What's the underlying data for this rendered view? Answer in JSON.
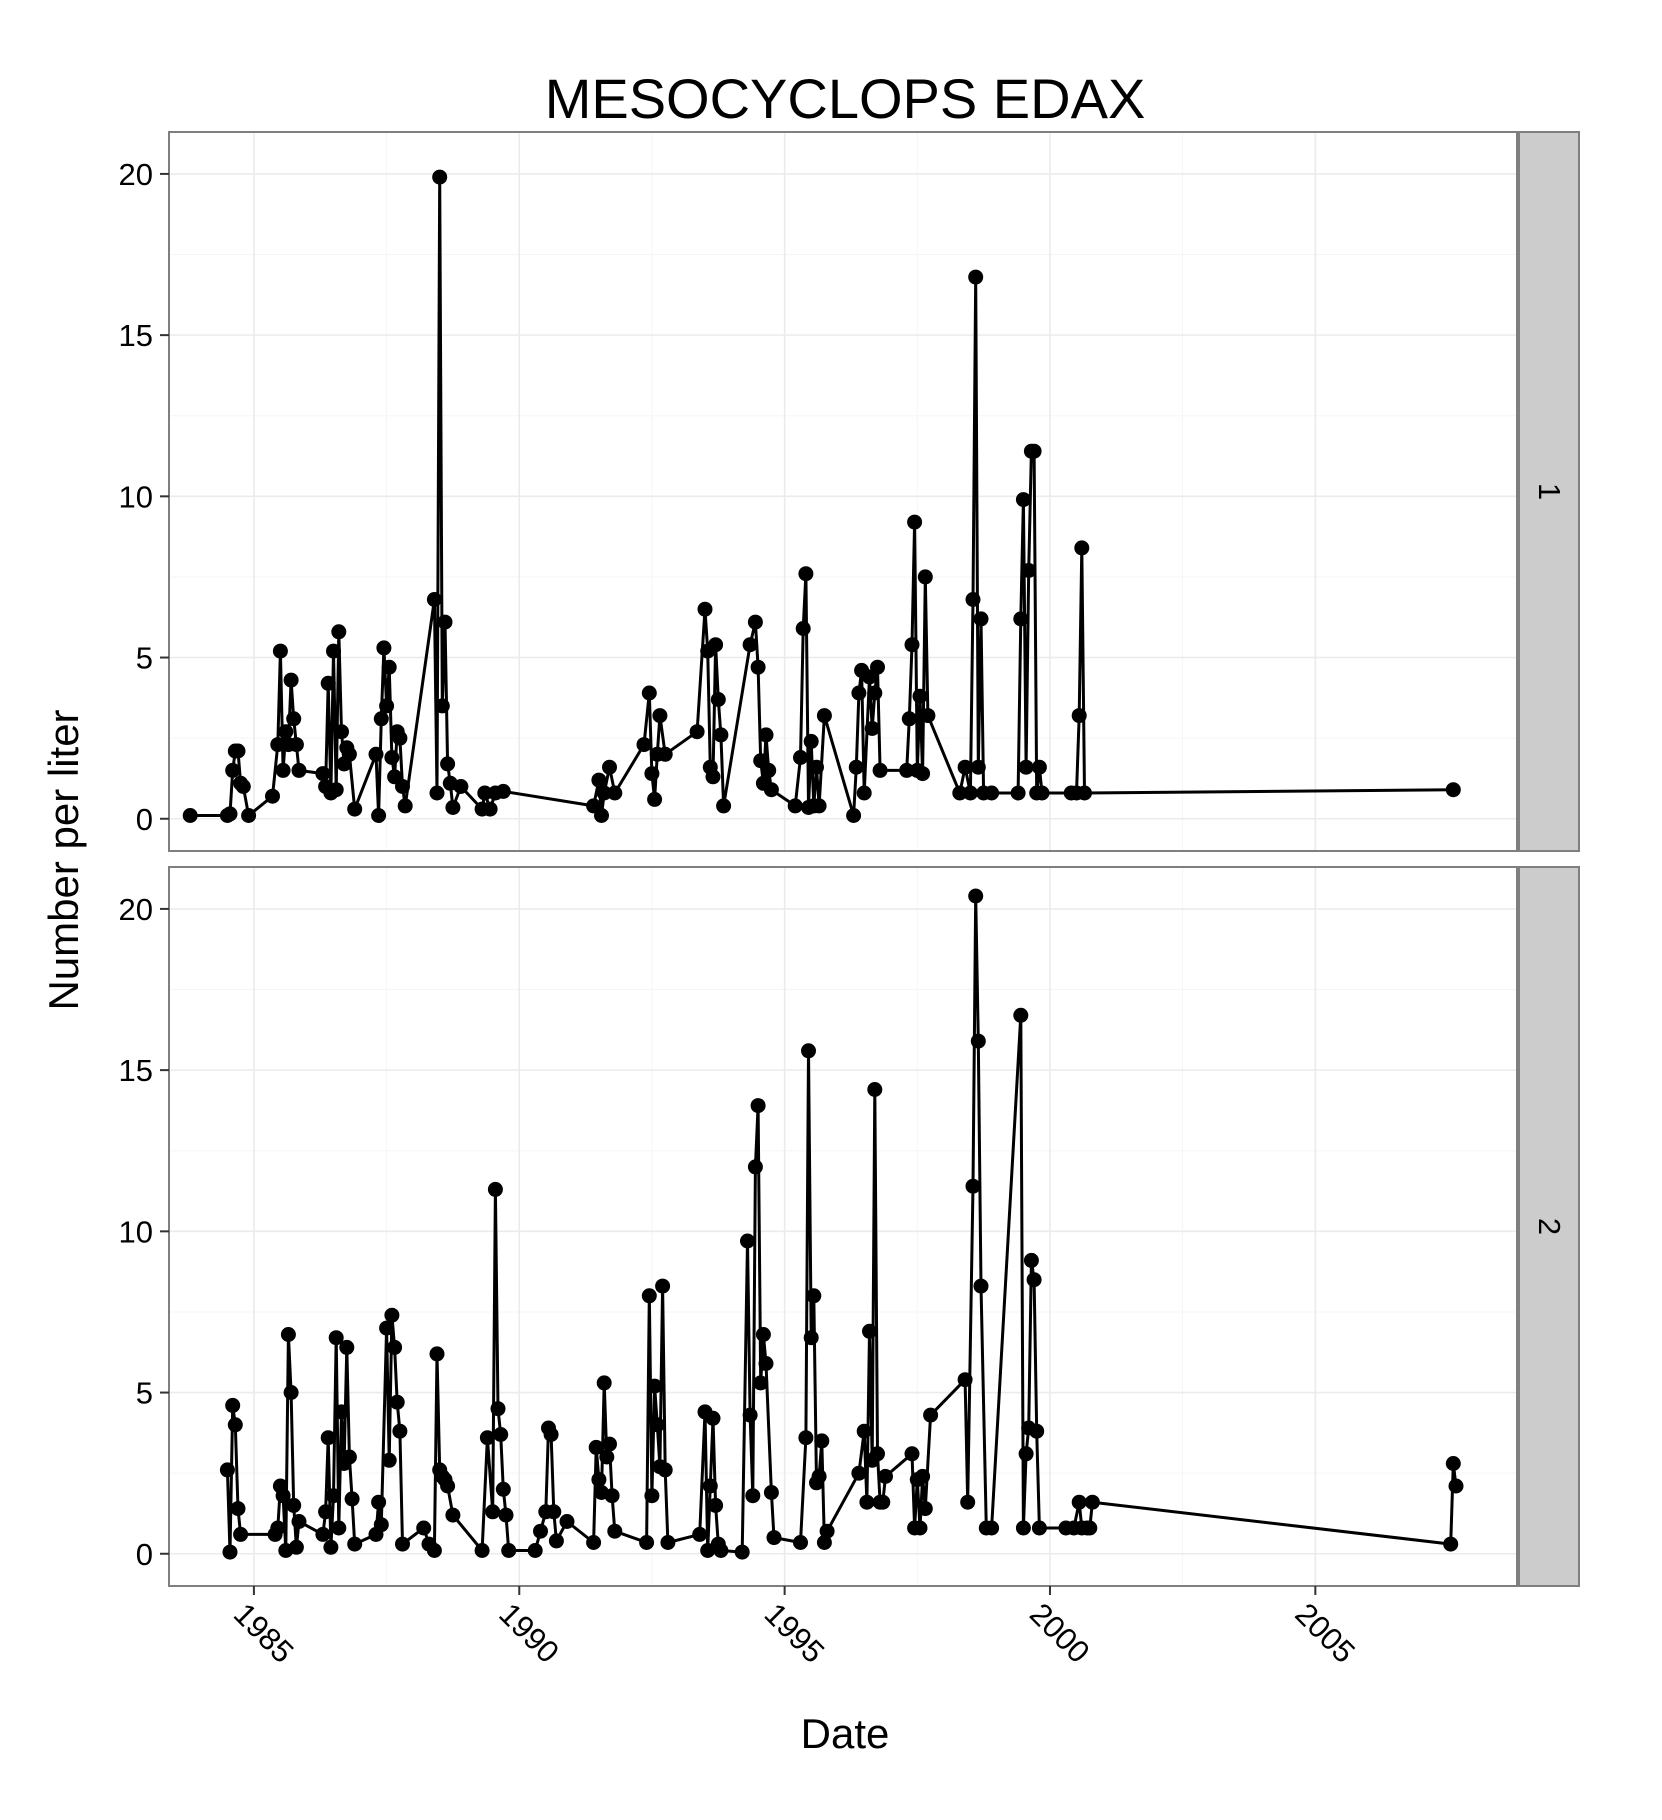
{
  "chart_data": {
    "type": "line",
    "title": "MESOCYCLOPS EDAX",
    "xlabel": "Date",
    "ylabel": "Number per liter",
    "xlim": [
      1983.4,
      2008.8
    ],
    "ylim": [
      -1,
      21.3
    ],
    "x_ticks": [
      1985,
      1990,
      1995,
      2000,
      2005
    ],
    "x_tick_labels": [
      "1985",
      "1990",
      "1995",
      "2000",
      "2005"
    ],
    "y_ticks": [
      0,
      5,
      10,
      15,
      20
    ],
    "y_tick_labels": [
      "0",
      "5",
      "10",
      "15",
      "20"
    ],
    "grid": true,
    "facet": "rows",
    "panels": [
      {
        "label": "1",
        "points": [
          [
            1983.8,
            0.1
          ],
          [
            1984.5,
            0.1
          ],
          [
            1984.55,
            0.15
          ],
          [
            1984.6,
            1.5
          ],
          [
            1984.65,
            2.1
          ],
          [
            1984.7,
            2.1
          ],
          [
            1984.75,
            1.1
          ],
          [
            1984.8,
            1.0
          ],
          [
            1984.9,
            0.1
          ],
          [
            1985.35,
            0.7
          ],
          [
            1985.45,
            2.3
          ],
          [
            1985.5,
            5.2
          ],
          [
            1985.55,
            1.5
          ],
          [
            1985.6,
            2.7
          ],
          [
            1985.65,
            2.3
          ],
          [
            1985.7,
            4.3
          ],
          [
            1985.75,
            3.1
          ],
          [
            1985.8,
            2.3
          ],
          [
            1985.85,
            1.5
          ],
          [
            1986.3,
            1.4
          ],
          [
            1986.35,
            1.0
          ],
          [
            1986.4,
            4.2
          ],
          [
            1986.45,
            0.8
          ],
          [
            1986.5,
            5.2
          ],
          [
            1986.55,
            0.9
          ],
          [
            1986.6,
            5.8
          ],
          [
            1986.65,
            2.7
          ],
          [
            1986.7,
            1.7
          ],
          [
            1986.75,
            2.2
          ],
          [
            1986.8,
            2.0
          ],
          [
            1986.9,
            0.3
          ],
          [
            1987.3,
            2.0
          ],
          [
            1987.35,
            0.1
          ],
          [
            1987.4,
            3.1
          ],
          [
            1987.45,
            5.3
          ],
          [
            1987.5,
            3.5
          ],
          [
            1987.55,
            4.7
          ],
          [
            1987.6,
            1.9
          ],
          [
            1987.65,
            1.3
          ],
          [
            1987.7,
            2.7
          ],
          [
            1987.75,
            2.5
          ],
          [
            1987.8,
            1.0
          ],
          [
            1987.85,
            0.4
          ],
          [
            1988.4,
            6.8
          ],
          [
            1988.45,
            0.8
          ],
          [
            1988.5,
            19.9
          ],
          [
            1988.55,
            3.5
          ],
          [
            1988.6,
            6.1
          ],
          [
            1988.65,
            1.7
          ],
          [
            1988.7,
            1.1
          ],
          [
            1988.75,
            0.35
          ],
          [
            1988.9,
            1.0
          ],
          [
            1989.3,
            0.3
          ],
          [
            1989.35,
            0.8
          ],
          [
            1989.45,
            0.3
          ],
          [
            1989.55,
            0.8
          ],
          [
            1989.7,
            0.85
          ],
          [
            1991.4,
            0.4
          ],
          [
            1991.5,
            1.2
          ],
          [
            1991.55,
            0.1
          ],
          [
            1991.6,
            0.8
          ],
          [
            1991.7,
            1.6
          ],
          [
            1991.8,
            0.8
          ],
          [
            1992.35,
            2.3
          ],
          [
            1992.45,
            3.9
          ],
          [
            1992.5,
            1.4
          ],
          [
            1992.55,
            0.6
          ],
          [
            1992.6,
            2.0
          ],
          [
            1992.65,
            3.2
          ],
          [
            1992.75,
            2.0
          ],
          [
            1993.35,
            2.7
          ],
          [
            1993.5,
            6.5
          ],
          [
            1993.55,
            5.2
          ],
          [
            1993.6,
            1.6
          ],
          [
            1993.65,
            1.3
          ],
          [
            1993.7,
            5.4
          ],
          [
            1993.75,
            3.7
          ],
          [
            1993.8,
            2.6
          ],
          [
            1993.85,
            0.4
          ],
          [
            1994.35,
            5.4
          ],
          [
            1994.45,
            6.1
          ],
          [
            1994.5,
            4.7
          ],
          [
            1994.55,
            1.8
          ],
          [
            1994.6,
            1.1
          ],
          [
            1994.65,
            2.6
          ],
          [
            1994.7,
            1.5
          ],
          [
            1994.75,
            0.9
          ],
          [
            1995.2,
            0.4
          ],
          [
            1995.3,
            1.9
          ],
          [
            1995.35,
            5.9
          ],
          [
            1995.4,
            7.6
          ],
          [
            1995.45,
            0.35
          ],
          [
            1995.5,
            2.4
          ],
          [
            1995.55,
            0.4
          ],
          [
            1995.6,
            1.6
          ],
          [
            1995.65,
            0.4
          ],
          [
            1995.75,
            3.2
          ],
          [
            1996.3,
            0.1
          ],
          [
            1996.35,
            1.6
          ],
          [
            1996.4,
            3.9
          ],
          [
            1996.45,
            4.6
          ],
          [
            1996.5,
            0.8
          ],
          [
            1996.6,
            4.4
          ],
          [
            1996.65,
            2.8
          ],
          [
            1996.7,
            3.9
          ],
          [
            1996.75,
            4.7
          ],
          [
            1996.8,
            1.5
          ],
          [
            1997.3,
            1.5
          ],
          [
            1997.35,
            3.1
          ],
          [
            1997.4,
            5.4
          ],
          [
            1997.45,
            9.2
          ],
          [
            1997.5,
            1.5
          ],
          [
            1997.55,
            3.8
          ],
          [
            1997.6,
            1.4
          ],
          [
            1997.65,
            7.5
          ],
          [
            1997.7,
            3.2
          ],
          [
            1998.3,
            0.8
          ],
          [
            1998.4,
            1.6
          ],
          [
            1998.5,
            0.8
          ],
          [
            1998.55,
            6.8
          ],
          [
            1998.6,
            16.8
          ],
          [
            1998.65,
            1.6
          ],
          [
            1998.7,
            6.2
          ],
          [
            1998.75,
            0.8
          ],
          [
            1998.9,
            0.8
          ],
          [
            1999.4,
            0.8
          ],
          [
            1999.45,
            6.2
          ],
          [
            1999.5,
            9.9
          ],
          [
            1999.55,
            1.6
          ],
          [
            1999.6,
            7.7
          ],
          [
            1999.65,
            11.4
          ],
          [
            1999.7,
            11.4
          ],
          [
            1999.75,
            0.8
          ],
          [
            1999.8,
            1.6
          ],
          [
            1999.85,
            0.8
          ],
          [
            2000.4,
            0.8
          ],
          [
            2000.5,
            0.8
          ],
          [
            2000.55,
            3.2
          ],
          [
            2000.6,
            8.4
          ],
          [
            2000.65,
            0.8
          ],
          [
            2007.6,
            0.9
          ]
        ]
      },
      {
        "label": "2",
        "points": [
          [
            1984.5,
            2.6
          ],
          [
            1984.55,
            0.05
          ],
          [
            1984.6,
            4.6
          ],
          [
            1984.65,
            4.0
          ],
          [
            1984.7,
            1.4
          ],
          [
            1984.75,
            0.6
          ],
          [
            1985.4,
            0.6
          ],
          [
            1985.45,
            0.8
          ],
          [
            1985.5,
            2.1
          ],
          [
            1985.55,
            1.8
          ],
          [
            1985.6,
            0.1
          ],
          [
            1985.65,
            6.8
          ],
          [
            1985.7,
            5.0
          ],
          [
            1985.75,
            1.5
          ],
          [
            1985.8,
            0.2
          ],
          [
            1985.85,
            1.0
          ],
          [
            1986.3,
            0.6
          ],
          [
            1986.35,
            1.3
          ],
          [
            1986.4,
            3.6
          ],
          [
            1986.45,
            0.2
          ],
          [
            1986.5,
            1.8
          ],
          [
            1986.55,
            6.7
          ],
          [
            1986.6,
            0.8
          ],
          [
            1986.65,
            4.4
          ],
          [
            1986.7,
            2.8
          ],
          [
            1986.75,
            6.4
          ],
          [
            1986.8,
            3.0
          ],
          [
            1986.85,
            1.7
          ],
          [
            1986.9,
            0.3
          ],
          [
            1987.3,
            0.6
          ],
          [
            1987.35,
            1.6
          ],
          [
            1987.4,
            0.9
          ],
          [
            1987.5,
            7.0
          ],
          [
            1987.55,
            2.9
          ],
          [
            1987.6,
            7.4
          ],
          [
            1987.65,
            6.4
          ],
          [
            1987.7,
            4.7
          ],
          [
            1987.75,
            3.8
          ],
          [
            1987.8,
            0.3
          ],
          [
            1988.2,
            0.8
          ],
          [
            1988.3,
            0.3
          ],
          [
            1988.4,
            0.1
          ],
          [
            1988.45,
            6.2
          ],
          [
            1988.5,
            2.6
          ],
          [
            1988.55,
            2.4
          ],
          [
            1988.6,
            2.3
          ],
          [
            1988.65,
            2.1
          ],
          [
            1988.75,
            1.2
          ],
          [
            1989.3,
            0.1
          ],
          [
            1989.4,
            3.6
          ],
          [
            1989.5,
            1.3
          ],
          [
            1989.55,
            11.3
          ],
          [
            1989.6,
            4.5
          ],
          [
            1989.65,
            3.7
          ],
          [
            1989.7,
            2.0
          ],
          [
            1989.75,
            1.2
          ],
          [
            1989.8,
            0.1
          ],
          [
            1990.3,
            0.1
          ],
          [
            1990.4,
            0.7
          ],
          [
            1990.5,
            1.3
          ],
          [
            1990.55,
            3.9
          ],
          [
            1990.6,
            3.7
          ],
          [
            1990.65,
            1.3
          ],
          [
            1990.7,
            0.4
          ],
          [
            1990.9,
            1.0
          ],
          [
            1991.4,
            0.35
          ],
          [
            1991.45,
            3.3
          ],
          [
            1991.5,
            2.3
          ],
          [
            1991.55,
            1.9
          ],
          [
            1991.6,
            5.3
          ],
          [
            1991.65,
            3.0
          ],
          [
            1991.7,
            3.4
          ],
          [
            1991.75,
            1.8
          ],
          [
            1991.8,
            0.7
          ],
          [
            1992.4,
            0.35
          ],
          [
            1992.45,
            8.0
          ],
          [
            1992.5,
            1.8
          ],
          [
            1992.55,
            5.2
          ],
          [
            1992.6,
            4.0
          ],
          [
            1992.65,
            2.7
          ],
          [
            1992.7,
            8.3
          ],
          [
            1992.75,
            2.6
          ],
          [
            1992.8,
            0.35
          ],
          [
            1993.4,
            0.6
          ],
          [
            1993.5,
            4.4
          ],
          [
            1993.55,
            0.1
          ],
          [
            1993.6,
            2.1
          ],
          [
            1993.65,
            4.2
          ],
          [
            1993.7,
            1.5
          ],
          [
            1993.75,
            0.3
          ],
          [
            1993.8,
            0.1
          ],
          [
            1994.2,
            0.05
          ],
          [
            1994.3,
            9.7
          ],
          [
            1994.35,
            4.3
          ],
          [
            1994.4,
            1.8
          ],
          [
            1994.45,
            12.0
          ],
          [
            1994.5,
            13.9
          ],
          [
            1994.55,
            5.3
          ],
          [
            1994.6,
            6.8
          ],
          [
            1994.65,
            5.9
          ],
          [
            1994.75,
            1.9
          ],
          [
            1994.8,
            0.5
          ],
          [
            1995.3,
            0.35
          ],
          [
            1995.4,
            3.6
          ],
          [
            1995.45,
            15.6
          ],
          [
            1995.5,
            6.7
          ],
          [
            1995.55,
            8.0
          ],
          [
            1995.6,
            2.2
          ],
          [
            1995.65,
            2.4
          ],
          [
            1995.7,
            3.5
          ],
          [
            1995.75,
            0.35
          ],
          [
            1995.8,
            0.7
          ],
          [
            1996.4,
            2.5
          ],
          [
            1996.5,
            3.8
          ],
          [
            1996.55,
            1.6
          ],
          [
            1996.6,
            6.9
          ],
          [
            1996.65,
            2.9
          ],
          [
            1996.7,
            14.4
          ],
          [
            1996.75,
            3.1
          ],
          [
            1996.8,
            1.6
          ],
          [
            1996.85,
            1.6
          ],
          [
            1996.9,
            2.4
          ],
          [
            1997.4,
            3.1
          ],
          [
            1997.45,
            0.8
          ],
          [
            1997.5,
            2.3
          ],
          [
            1997.55,
            0.8
          ],
          [
            1997.6,
            2.4
          ],
          [
            1997.65,
            1.4
          ],
          [
            1997.75,
            4.3
          ],
          [
            1998.4,
            5.4
          ],
          [
            1998.45,
            1.6
          ],
          [
            1998.55,
            11.4
          ],
          [
            1998.6,
            20.4
          ],
          [
            1998.65,
            15.9
          ],
          [
            1998.7,
            8.3
          ],
          [
            1998.8,
            0.8
          ],
          [
            1998.9,
            0.8
          ],
          [
            1999.45,
            16.7
          ],
          [
            1999.5,
            0.8
          ],
          [
            1999.55,
            3.1
          ],
          [
            1999.6,
            3.9
          ],
          [
            1999.65,
            9.1
          ],
          [
            1999.7,
            8.5
          ],
          [
            1999.75,
            3.8
          ],
          [
            1999.8,
            0.8
          ],
          [
            2000.3,
            0.8
          ],
          [
            2000.45,
            0.8
          ],
          [
            2000.55,
            1.6
          ],
          [
            2000.6,
            0.8
          ],
          [
            2000.7,
            0.8
          ],
          [
            2000.75,
            0.8
          ],
          [
            2000.8,
            1.6
          ],
          [
            2007.55,
            0.3
          ],
          [
            2007.6,
            2.8
          ],
          [
            2007.65,
            2.1
          ]
        ]
      }
    ]
  }
}
